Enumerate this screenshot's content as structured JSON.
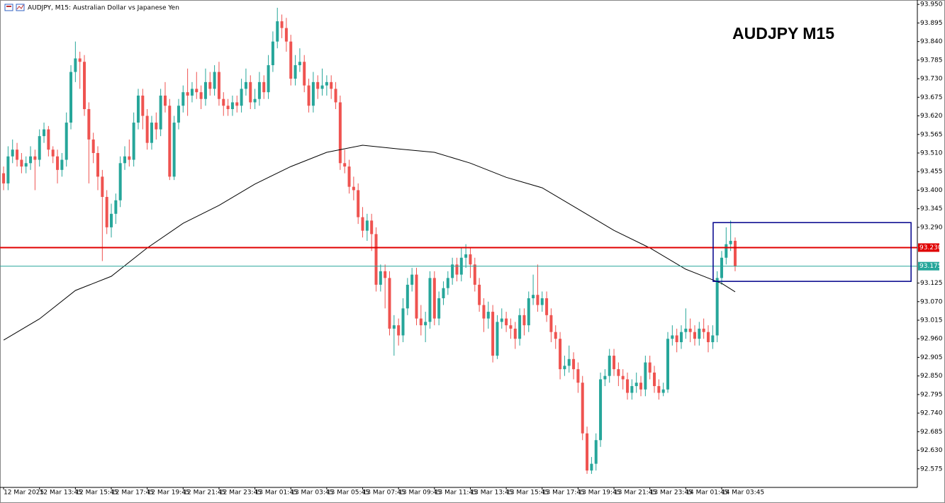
{
  "header": {
    "title": "AUDJPY, M15: Australian Dollar vs Japanese Yen"
  },
  "chart_data": {
    "type": "candlestick",
    "title": "AUDJPY M15",
    "up_color": "#26a69a",
    "down_color": "#ef5350",
    "ohlc": [
      [
        93.45,
        93.47,
        93.4,
        93.42
      ],
      [
        93.42,
        93.53,
        93.4,
        93.5
      ],
      [
        93.5,
        93.55,
        93.48,
        93.52
      ],
      [
        93.52,
        93.54,
        93.47,
        93.49
      ],
      [
        93.49,
        93.51,
        93.45,
        93.47
      ],
      [
        93.47,
        93.5,
        93.45,
        93.48
      ],
      [
        93.48,
        93.53,
        93.46,
        93.5
      ],
      [
        93.5,
        93.52,
        93.4,
        93.49
      ],
      [
        93.49,
        93.58,
        93.47,
        93.56
      ],
      [
        93.56,
        93.6,
        93.54,
        93.58
      ],
      [
        93.58,
        93.59,
        93.5,
        93.52
      ],
      [
        93.52,
        93.53,
        93.48,
        93.5
      ],
      [
        93.5,
        93.52,
        93.42,
        93.46
      ],
      [
        93.46,
        93.51,
        93.44,
        93.49
      ],
      [
        93.49,
        93.63,
        93.47,
        93.6
      ],
      [
        93.6,
        93.77,
        93.58,
        93.75
      ],
      [
        93.75,
        93.84,
        93.72,
        93.79
      ],
      [
        93.79,
        93.81,
        93.7,
        93.78
      ],
      [
        93.78,
        93.8,
        93.62,
        93.64
      ],
      [
        93.64,
        93.66,
        93.42,
        93.55
      ],
      [
        93.55,
        93.57,
        93.48,
        93.51
      ],
      [
        93.51,
        93.53,
        93.4,
        93.44
      ],
      [
        93.44,
        93.46,
        93.19,
        93.38
      ],
      [
        93.38,
        93.4,
        93.27,
        93.29
      ],
      [
        93.29,
        93.36,
        93.26,
        93.33
      ],
      [
        93.33,
        93.39,
        93.3,
        93.37
      ],
      [
        93.37,
        93.5,
        93.35,
        93.48
      ],
      [
        93.48,
        93.53,
        93.46,
        93.5
      ],
      [
        93.5,
        93.55,
        93.47,
        93.49
      ],
      [
        93.49,
        93.63,
        93.47,
        93.6
      ],
      [
        93.6,
        93.7,
        93.58,
        93.68
      ],
      [
        93.68,
        93.7,
        93.58,
        93.62
      ],
      [
        93.62,
        93.64,
        93.52,
        93.54
      ],
      [
        93.54,
        93.62,
        93.52,
        93.6
      ],
      [
        93.6,
        93.63,
        93.55,
        93.58
      ],
      [
        93.58,
        93.7,
        93.56,
        93.68
      ],
      [
        93.68,
        93.72,
        93.63,
        93.65
      ],
      [
        93.65,
        93.67,
        93.43,
        93.44
      ],
      [
        93.44,
        93.62,
        93.43,
        93.6
      ],
      [
        93.6,
        93.67,
        93.58,
        93.65
      ],
      [
        93.65,
        93.71,
        93.63,
        93.69
      ],
      [
        93.69,
        93.76,
        93.62,
        93.68
      ],
      [
        93.68,
        93.72,
        93.66,
        93.7
      ],
      [
        93.7,
        93.75,
        93.67,
        93.69
      ],
      [
        93.69,
        93.71,
        93.64,
        93.67
      ],
      [
        93.67,
        93.76,
        93.65,
        93.72
      ],
      [
        93.72,
        93.75,
        93.68,
        93.7
      ],
      [
        93.7,
        93.77,
        93.68,
        93.75
      ],
      [
        93.75,
        93.78,
        93.65,
        93.67
      ],
      [
        93.67,
        93.69,
        93.62,
        93.65
      ],
      [
        93.65,
        93.67,
        93.62,
        93.64
      ],
      [
        93.64,
        93.68,
        93.62,
        93.66
      ],
      [
        93.66,
        93.68,
        93.63,
        93.65
      ],
      [
        93.65,
        93.73,
        93.63,
        93.7
      ],
      [
        93.7,
        93.76,
        93.68,
        93.72
      ],
      [
        93.72,
        93.74,
        93.64,
        93.66
      ],
      [
        93.66,
        93.7,
        93.64,
        93.67
      ],
      [
        93.67,
        93.75,
        93.65,
        93.72
      ],
      [
        93.72,
        93.74,
        93.67,
        93.69
      ],
      [
        93.69,
        93.8,
        93.67,
        93.77
      ],
      [
        93.77,
        93.87,
        93.75,
        93.84
      ],
      [
        93.84,
        93.94,
        93.82,
        93.9
      ],
      [
        93.9,
        93.92,
        93.85,
        93.88
      ],
      [
        93.88,
        93.91,
        93.81,
        93.84
      ],
      [
        93.84,
        93.86,
        93.71,
        93.73
      ],
      [
        93.73,
        93.8,
        93.71,
        93.77
      ],
      [
        93.77,
        93.82,
        93.75,
        93.78
      ],
      [
        93.78,
        93.8,
        93.69,
        93.71
      ],
      [
        93.71,
        93.73,
        93.63,
        93.65
      ],
      [
        93.65,
        93.75,
        93.63,
        93.72
      ],
      [
        93.72,
        93.74,
        93.67,
        93.7
      ],
      [
        93.7,
        93.76,
        93.68,
        93.71
      ],
      [
        93.71,
        93.74,
        93.68,
        93.72
      ],
      [
        93.72,
        93.74,
        93.67,
        93.7
      ],
      [
        93.7,
        93.72,
        93.64,
        93.66
      ],
      [
        93.66,
        93.68,
        93.46,
        93.48
      ],
      [
        93.48,
        93.52,
        93.45,
        93.47
      ],
      [
        93.47,
        93.49,
        93.39,
        93.41
      ],
      [
        93.41,
        93.44,
        93.37,
        93.4
      ],
      [
        93.4,
        93.42,
        93.3,
        93.32
      ],
      [
        93.32,
        93.35,
        93.26,
        93.28
      ],
      [
        93.28,
        93.33,
        93.25,
        93.31
      ],
      [
        93.31,
        93.33,
        93.22,
        93.27
      ],
      [
        93.27,
        93.29,
        93.1,
        93.12
      ],
      [
        93.12,
        93.18,
        93.1,
        93.16
      ],
      [
        93.16,
        93.18,
        93.05,
        93.14
      ],
      [
        93.14,
        93.16,
        92.97,
        92.99
      ],
      [
        92.99,
        93.03,
        92.91,
        93.0
      ],
      [
        93.0,
        93.02,
        92.94,
        92.97
      ],
      [
        92.97,
        93.08,
        92.95,
        93.05
      ],
      [
        93.05,
        93.14,
        93.03,
        93.12
      ],
      [
        93.12,
        93.17,
        93.1,
        93.15
      ],
      [
        93.15,
        93.17,
        93.0,
        93.02
      ],
      [
        93.02,
        93.06,
        92.97,
        93.0
      ],
      [
        93.0,
        93.04,
        92.95,
        93.01
      ],
      [
        93.01,
        93.16,
        92.99,
        93.14
      ],
      [
        93.14,
        93.16,
        93.0,
        93.02
      ],
      [
        93.02,
        93.1,
        93.0,
        93.08
      ],
      [
        93.08,
        93.13,
        93.06,
        93.11
      ],
      [
        93.11,
        93.16,
        93.09,
        93.14
      ],
      [
        93.14,
        93.2,
        93.12,
        93.18
      ],
      [
        93.18,
        93.2,
        93.13,
        93.15
      ],
      [
        93.15,
        93.23,
        93.13,
        93.2
      ],
      [
        93.2,
        93.24,
        93.17,
        93.21
      ],
      [
        93.21,
        93.23,
        93.14,
        93.18
      ],
      [
        93.18,
        93.2,
        93.1,
        93.12
      ],
      [
        93.12,
        93.14,
        93.04,
        93.06
      ],
      [
        93.06,
        93.08,
        92.98,
        93.02
      ],
      [
        93.02,
        93.07,
        92.99,
        93.04
      ],
      [
        93.04,
        93.06,
        92.89,
        92.91
      ],
      [
        92.91,
        93.03,
        92.9,
        93.01
      ],
      [
        93.01,
        93.05,
        92.99,
        93.02
      ],
      [
        93.02,
        93.04,
        92.98,
        93.0
      ],
      [
        93.0,
        93.02,
        92.96,
        92.99
      ],
      [
        92.99,
        93.01,
        92.93,
        92.96
      ],
      [
        92.96,
        93.05,
        92.94,
        93.03
      ],
      [
        93.03,
        93.05,
        92.97,
        93.0
      ],
      [
        93.0,
        93.1,
        92.98,
        93.08
      ],
      [
        93.08,
        93.15,
        93.06,
        93.09
      ],
      [
        93.09,
        93.18,
        93.04,
        93.06
      ],
      [
        93.06,
        93.1,
        93.04,
        93.08
      ],
      [
        93.08,
        93.1,
        93.01,
        93.03
      ],
      [
        93.03,
        93.05,
        92.95,
        92.98
      ],
      [
        92.98,
        93.0,
        92.93,
        92.96
      ],
      [
        92.96,
        92.98,
        92.84,
        92.87
      ],
      [
        92.87,
        92.91,
        92.85,
        92.88
      ],
      [
        92.88,
        92.94,
        92.86,
        92.9
      ],
      [
        92.9,
        92.92,
        92.84,
        92.87
      ],
      [
        92.87,
        92.89,
        92.8,
        92.83
      ],
      [
        92.83,
        92.85,
        92.66,
        92.68
      ],
      [
        92.68,
        92.7,
        92.56,
        92.57
      ],
      [
        92.57,
        92.61,
        92.56,
        92.59
      ],
      [
        92.59,
        92.68,
        92.57,
        92.66
      ],
      [
        92.66,
        92.86,
        92.64,
        92.84
      ],
      [
        92.84,
        92.87,
        92.82,
        92.85
      ],
      [
        92.85,
        92.93,
        92.83,
        92.91
      ],
      [
        92.91,
        92.93,
        92.85,
        92.87
      ],
      [
        92.87,
        92.89,
        92.82,
        92.85
      ],
      [
        92.85,
        92.87,
        92.81,
        92.84
      ],
      [
        92.84,
        92.86,
        92.78,
        92.8
      ],
      [
        92.8,
        92.84,
        92.78,
        92.82
      ],
      [
        92.82,
        92.86,
        92.8,
        92.83
      ],
      [
        92.83,
        92.85,
        92.79,
        92.81
      ],
      [
        92.81,
        92.91,
        92.79,
        92.89
      ],
      [
        92.89,
        92.91,
        92.84,
        92.86
      ],
      [
        92.86,
        92.88,
        92.8,
        92.82
      ],
      [
        92.82,
        92.84,
        92.78,
        92.8
      ],
      [
        92.8,
        92.83,
        92.79,
        92.81
      ],
      [
        92.81,
        92.98,
        92.8,
        92.96
      ],
      [
        92.96,
        93.0,
        92.94,
        92.97
      ],
      [
        92.97,
        92.99,
        92.92,
        92.95
      ],
      [
        92.95,
        93.0,
        92.93,
        92.98
      ],
      [
        92.98,
        93.05,
        92.96,
        92.99
      ],
      [
        92.99,
        93.02,
        92.95,
        92.98
      ],
      [
        92.98,
        93.0,
        92.94,
        92.96
      ],
      [
        92.96,
        93.01,
        92.94,
        92.99
      ],
      [
        92.99,
        93.02,
        92.96,
        92.98
      ],
      [
        92.98,
        93.0,
        92.92,
        92.95
      ],
      [
        92.95,
        93.0,
        92.93,
        92.97
      ],
      [
        92.97,
        93.16,
        92.95,
        93.14
      ],
      [
        93.14,
        93.22,
        93.12,
        93.2
      ],
      [
        93.2,
        93.29,
        93.18,
        93.24
      ],
      [
        93.24,
        93.31,
        93.22,
        93.25
      ],
      [
        93.25,
        93.26,
        93.16,
        93.175
      ]
    ],
    "ma": {
      "color": "#000000",
      "x": [
        0,
        8,
        16,
        24,
        32,
        40,
        48,
        56,
        64,
        72,
        80,
        88,
        96,
        104,
        112,
        120,
        128,
        136,
        144,
        152,
        160,
        163
      ],
      "values": [
        92.956,
        93.019,
        93.103,
        93.145,
        93.229,
        93.302,
        93.355,
        93.418,
        93.47,
        93.512,
        93.533,
        93.522,
        93.512,
        93.48,
        93.438,
        93.407,
        93.344,
        93.281,
        93.229,
        93.166,
        93.124,
        93.099
      ]
    },
    "levels": [
      {
        "value": 93.23,
        "label": "93.230",
        "color": "#e00000"
      },
      {
        "value": 93.175,
        "label": "93.175",
        "color": "#26a69a"
      }
    ],
    "box": {
      "x": [
        158.1,
        202.2
      ],
      "y": [
        93.13,
        93.304
      ],
      "color": "#00008b"
    },
    "xlim": [
      -0.8,
      203.6
    ],
    "ylim": [
      92.52,
      93.963
    ],
    "xticks": [
      {
        "value": 0,
        "label": "12 Mar 2025"
      },
      {
        "value": 8,
        "label": "12 Mar 13:45"
      },
      {
        "value": 16,
        "label": "12 Mar 15:45"
      },
      {
        "value": 24,
        "label": "12 Mar 17:45"
      },
      {
        "value": 32,
        "label": "12 Mar 19:45"
      },
      {
        "value": 40,
        "label": "12 Mar 21:45"
      },
      {
        "value": 48,
        "label": "12 Mar 23:45"
      },
      {
        "value": 56,
        "label": "13 Mar 01:45"
      },
      {
        "value": 64,
        "label": "13 Mar 03:45"
      },
      {
        "value": 72,
        "label": "13 Mar 05:45"
      },
      {
        "value": 80,
        "label": "13 Mar 07:45"
      },
      {
        "value": 88,
        "label": "13 Mar 09:45"
      },
      {
        "value": 96,
        "label": "13 Mar 11:45"
      },
      {
        "value": 104,
        "label": "13 Mar 13:45"
      },
      {
        "value": 112,
        "label": "13 Mar 15:45"
      },
      {
        "value": 120,
        "label": "13 Mar 17:45"
      },
      {
        "value": 128,
        "label": "13 Mar 19:45"
      },
      {
        "value": 136,
        "label": "13 Mar 21:45"
      },
      {
        "value": 144,
        "label": "13 Mar 23:45"
      },
      {
        "value": 152,
        "label": "14 Mar 01:45"
      },
      {
        "value": 160,
        "label": "14 Mar 03:45"
      }
    ],
    "yticks": [
      {
        "value": 93.95,
        "label": "93.950"
      },
      {
        "value": 93.895,
        "label": "93.895"
      },
      {
        "value": 93.84,
        "label": "93.840"
      },
      {
        "value": 93.785,
        "label": "93.785"
      },
      {
        "value": 93.73,
        "label": "93.730"
      },
      {
        "value": 93.675,
        "label": "93.675"
      },
      {
        "value": 93.62,
        "label": "93.620"
      },
      {
        "value": 93.565,
        "label": "93.565"
      },
      {
        "value": 93.51,
        "label": "93.510"
      },
      {
        "value": 93.455,
        "label": "93.455"
      },
      {
        "value": 93.4,
        "label": "93.400"
      },
      {
        "value": 93.345,
        "label": "93.345"
      },
      {
        "value": 93.29,
        "label": "93.290"
      },
      {
        "value": 93.125,
        "label": "93.125"
      },
      {
        "value": 93.07,
        "label": "93.070"
      },
      {
        "value": 93.015,
        "label": "93.015"
      },
      {
        "value": 92.96,
        "label": "92.960"
      },
      {
        "value": 92.905,
        "label": "92.905"
      },
      {
        "value": 92.85,
        "label": "92.850"
      },
      {
        "value": 92.795,
        "label": "92.795"
      },
      {
        "value": 92.74,
        "label": "92.740"
      },
      {
        "value": 92.685,
        "label": "92.685"
      },
      {
        "value": 92.63,
        "label": "92.630"
      },
      {
        "value": 92.575,
        "label": "92.575"
      }
    ]
  }
}
